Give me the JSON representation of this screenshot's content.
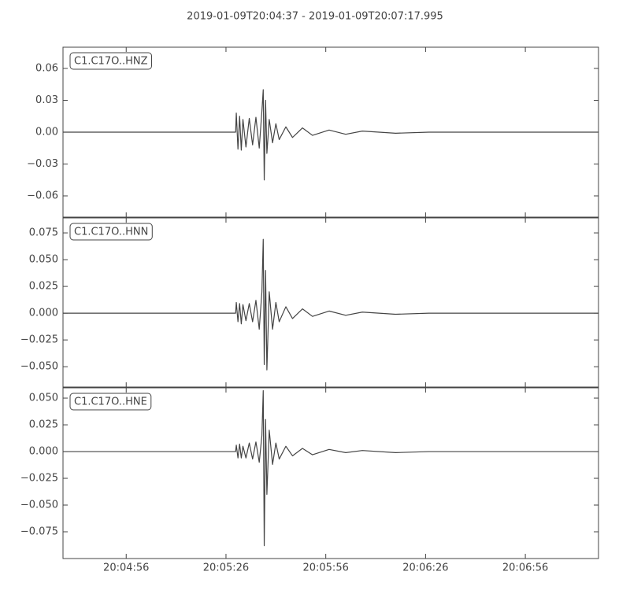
{
  "title": "2019-01-09T20:04:37  -  2019-01-09T20:07:17.995",
  "chart_data": [
    {
      "type": "line",
      "xlim": [
        0,
        160.995
      ],
      "ylim": [
        -0.08,
        0.08
      ],
      "yticks": [
        0.06,
        0.03,
        {
          "value": 0,
          "label": "0.00"
        },
        {
          "value": -0.03,
          "label": "−0.03"
        },
        {
          "value": -0.06,
          "label": "−0.06"
        }
      ],
      "x": [
        0,
        51.9,
        52.1,
        52.6,
        53.1,
        53.6,
        54.1,
        55,
        56,
        57,
        58,
        59,
        59.8,
        60.2,
        60.5,
        60.9,
        61.3,
        62,
        63,
        64,
        65,
        67,
        69,
        72,
        75,
        80,
        85,
        90,
        100,
        110,
        160.995
      ],
      "series": [
        {
          "name": "C1.C17O..HNZ",
          "color": "#444444",
          "values": [
            0,
            0,
            0.018,
            -0.016,
            0.015,
            -0.017,
            0.012,
            -0.014,
            0.013,
            -0.012,
            0.014,
            -0.015,
            0.02,
            0.04,
            -0.045,
            0.03,
            -0.02,
            0.012,
            -0.01,
            0.008,
            -0.007,
            0.005,
            -0.005,
            0.004,
            -0.003,
            0.002,
            -0.002,
            0.001,
            -0.001,
            0,
            0
          ]
        }
      ]
    },
    {
      "type": "line",
      "xlim": [
        0,
        160.995
      ],
      "ylim": [
        -0.069,
        0.089
      ],
      "yticks": [
        0.075,
        {
          "value": 0.05,
          "label": "0.050"
        },
        0.025,
        {
          "value": 0,
          "label": "0.000"
        },
        {
          "value": -0.025,
          "label": "−0.025"
        },
        {
          "value": -0.05,
          "label": "−0.050"
        }
      ],
      "x": [
        0,
        51.9,
        52.1,
        52.6,
        53.1,
        53.6,
        54.1,
        55,
        56,
        57,
        58,
        59,
        59.8,
        60.2,
        60.5,
        60.9,
        61.3,
        62,
        63,
        64,
        65,
        67,
        69,
        72,
        75,
        80,
        85,
        90,
        100,
        110,
        160.995
      ],
      "series": [
        {
          "name": "C1.C17O..HNN",
          "color": "#444444",
          "values": [
            0,
            0,
            0.01,
            -0.008,
            0.009,
            -0.01,
            0.008,
            -0.007,
            0.009,
            -0.008,
            0.012,
            -0.015,
            0.02,
            0.069,
            -0.048,
            0.04,
            -0.053,
            0.02,
            -0.015,
            0.01,
            -0.008,
            0.006,
            -0.005,
            0.004,
            -0.003,
            0.002,
            -0.002,
            0.001,
            -0.001,
            0,
            0
          ]
        }
      ]
    },
    {
      "type": "line",
      "xlim": [
        0,
        160.995
      ],
      "ylim": [
        -0.1,
        0.0596
      ],
      "yticks": [
        {
          "value": 0.05,
          "label": "0.050"
        },
        0.025,
        {
          "value": 0,
          "label": "0.000"
        },
        {
          "value": -0.025,
          "label": "−0.025"
        },
        {
          "value": -0.05,
          "label": "−0.050"
        },
        {
          "value": -0.075,
          "label": "−0.075"
        }
      ],
      "xticks": [
        {
          "value": 19,
          "label": "20:04:56"
        },
        {
          "value": 49,
          "label": "20:05:26"
        },
        {
          "value": 79,
          "label": "20:05:56"
        },
        {
          "value": 109,
          "label": "20:06:26"
        },
        {
          "value": 139,
          "label": "20:06:56"
        }
      ],
      "x": [
        0,
        51.9,
        52.1,
        52.6,
        53.1,
        53.6,
        54.1,
        55,
        56,
        57,
        58,
        59,
        59.8,
        60.2,
        60.5,
        60.9,
        61.3,
        62,
        63,
        64,
        65,
        67,
        69,
        72,
        75,
        80,
        85,
        90,
        100,
        110,
        160.995
      ],
      "series": [
        {
          "name": "C1.C17O..HNE",
          "color": "#444444",
          "values": [
            0,
            0,
            0.006,
            -0.006,
            0.007,
            -0.006,
            0.005,
            -0.006,
            0.008,
            -0.007,
            0.009,
            -0.01,
            0.015,
            0.057,
            -0.088,
            0.03,
            -0.04,
            0.02,
            -0.012,
            0.008,
            -0.007,
            0.005,
            -0.004,
            0.003,
            -0.003,
            0.002,
            -0.001,
            0.001,
            -0.001,
            0,
            0
          ]
        }
      ]
    }
  ]
}
